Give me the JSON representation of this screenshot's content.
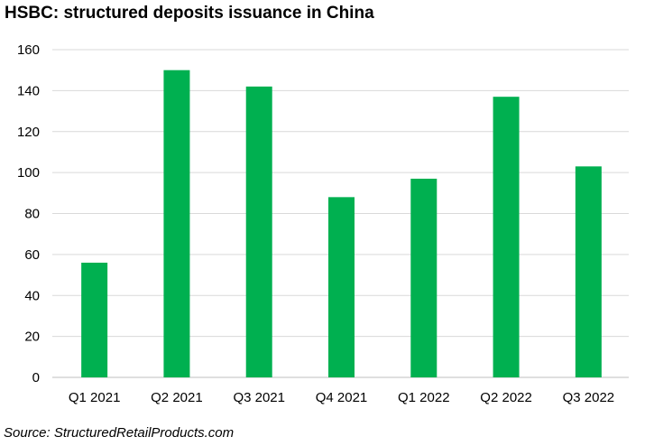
{
  "title": "HSBC: structured deposits issuance in China",
  "source": "Source: StructuredRetailProducts.com",
  "chart_data": {
    "type": "bar",
    "title": "HSBC: structured deposits issuance in China",
    "xlabel": "",
    "ylabel": "",
    "categories": [
      "Q1 2021",
      "Q2 2021",
      "Q3 2021",
      "Q4 2021",
      "Q1 2022",
      "Q2 2022",
      "Q3 2022"
    ],
    "values": [
      56,
      150,
      142,
      88,
      97,
      137,
      103
    ],
    "ylim": [
      0,
      160
    ],
    "yticks": [
      0,
      20,
      40,
      60,
      80,
      100,
      120,
      140,
      160
    ],
    "grid": true,
    "legend": "none",
    "bar_color": "#00b050",
    "grid_color": "#d9d9d9"
  }
}
